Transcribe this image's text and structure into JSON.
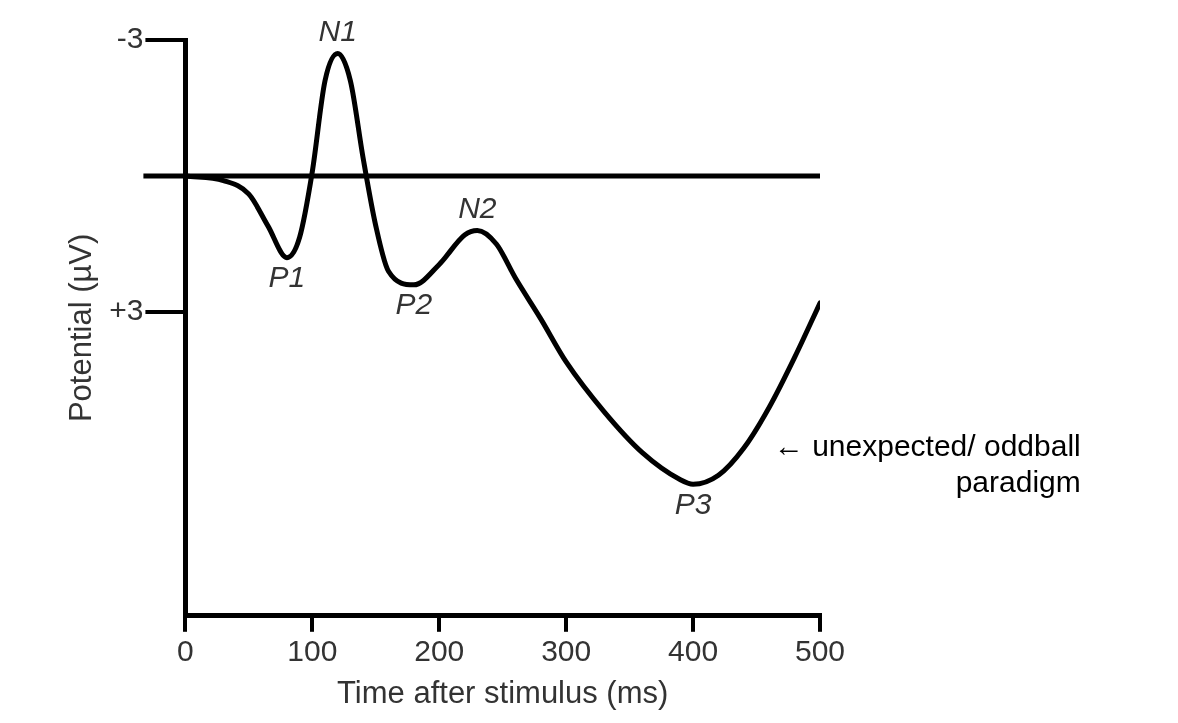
{
  "chart_data": {
    "type": "line",
    "xlabel": "Time after stimulus (ms)",
    "ylabel": "Potential (µV)",
    "x": [
      0,
      30,
      50,
      65,
      80,
      90,
      100,
      110,
      120,
      130,
      140,
      150,
      160,
      180,
      200,
      220,
      230,
      245,
      260,
      280,
      300,
      330,
      360,
      390,
      400,
      420,
      440,
      460,
      480,
      500
    ],
    "series": [
      {
        "color": "#000000",
        "values": [
          0,
          0.1,
          0.4,
          1.1,
          1.8,
          1.35,
          -0.1,
          -2.1,
          -2.7,
          -2.1,
          -0.4,
          1.1,
          2.1,
          2.4,
          1.95,
          1.3,
          1.2,
          1.5,
          2.25,
          3.15,
          4.1,
          5.2,
          6.1,
          6.7,
          6.8,
          6.6,
          6.0,
          5.1,
          4.0,
          2.8
        ]
      }
    ],
    "xlim": [
      0,
      500
    ],
    "xticks": [
      0,
      100,
      200,
      300,
      400,
      500
    ],
    "ylim": [
      9.7,
      -3
    ],
    "yticks": [
      -3,
      {
        "value": 0,
        "label": null
      },
      {
        "value": 3,
        "label": "+3"
      }
    ],
    "ref_lines": [
      {
        "axis": "y",
        "value": 0
      }
    ],
    "grid": false,
    "marker": "none",
    "line_style": "solid",
    "annotations": [
      {
        "text": "P1",
        "x": 80,
        "y": 1.8
      },
      {
        "text": "N1",
        "x": 120,
        "y": -2.7
      },
      {
        "text": "P2",
        "x": 180,
        "y": 2.4
      },
      {
        "text": "N2",
        "x": 230,
        "y": 1.2
      },
      {
        "text": "P3",
        "x": 400,
        "y": 6.8
      },
      {
        "text": "← unexpected/ oddball paradigm",
        "x": 440,
        "y": 6.0
      }
    ]
  }
}
